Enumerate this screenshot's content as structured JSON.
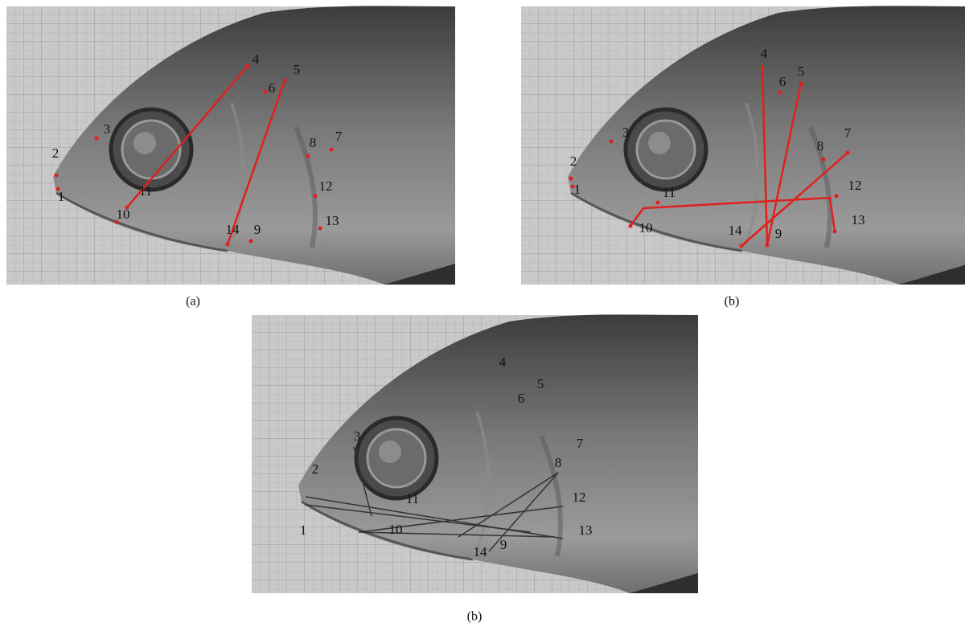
{
  "panels": [
    {
      "caption": "(a)",
      "landmarks": [
        "1",
        "2",
        "3",
        "4",
        "5",
        "6",
        "7",
        "8",
        "9",
        "10",
        "11",
        "12",
        "13",
        "14"
      ]
    },
    {
      "caption": "(b)",
      "landmarks": [
        "1",
        "2",
        "3",
        "4",
        "5",
        "6",
        "7",
        "8",
        "9",
        "10",
        "11",
        "12",
        "13",
        "14"
      ]
    },
    {
      "caption": "(b)",
      "landmarks": [
        "1",
        "2",
        "3",
        "4",
        "5",
        "6",
        "7",
        "8",
        "9",
        "10",
        "11",
        "12",
        "13",
        "14"
      ]
    }
  ]
}
